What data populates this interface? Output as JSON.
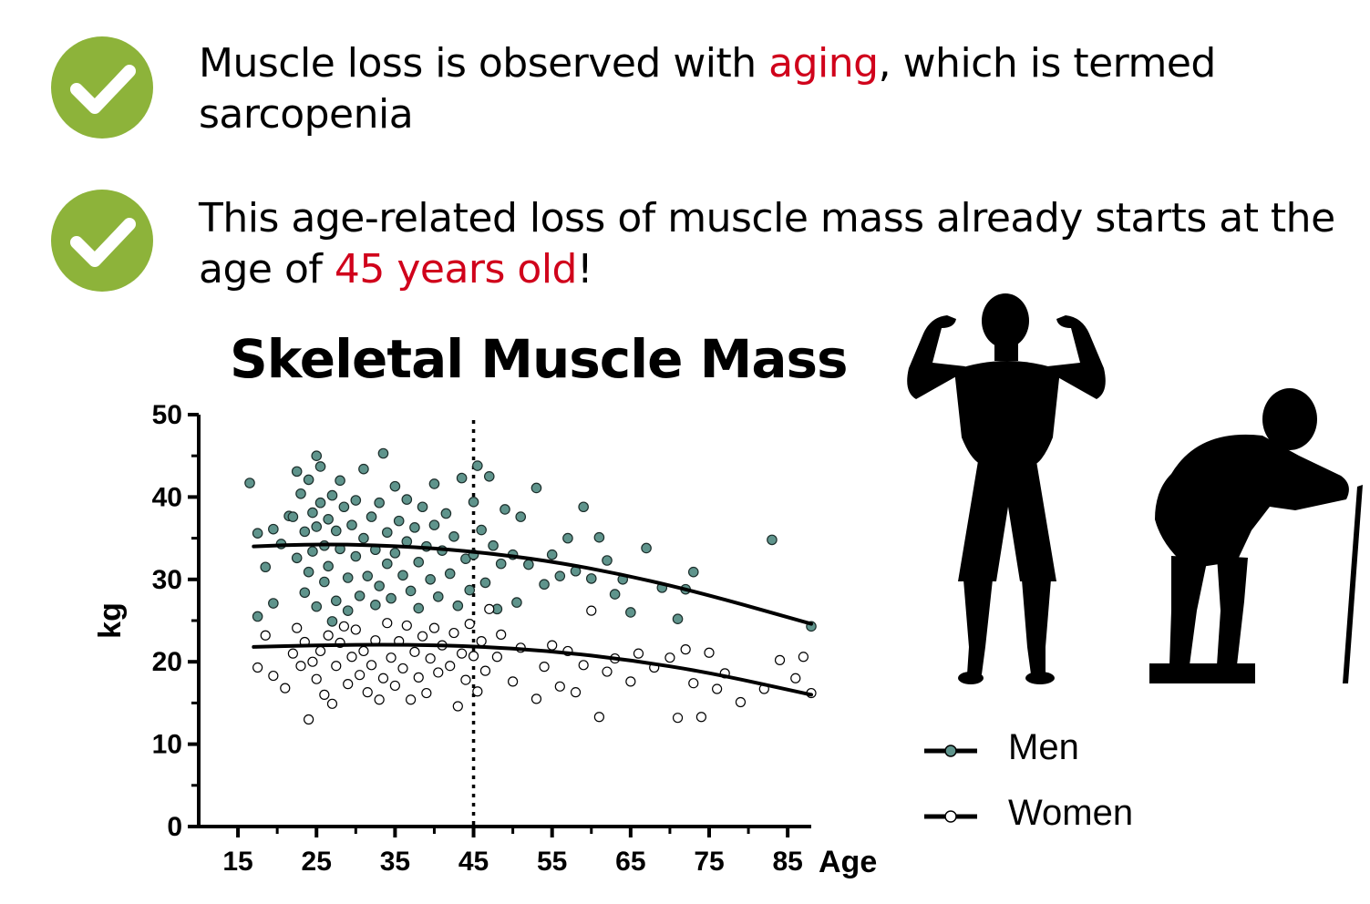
{
  "bullets": [
    {
      "icon": "check-circle-icon",
      "text_before": "Muscle loss is observed with ",
      "highlight": "aging",
      "text_after": ", which is termed sarcopenia"
    },
    {
      "icon": "check-circle-icon",
      "text_before": "This age-related loss of muscle mass already starts at the age of ",
      "highlight": "45 years old",
      "text_after": "!"
    }
  ],
  "colors": {
    "check_green": "#8db33a",
    "highlight_red": "#d0021b",
    "men_marker": "#5f948c",
    "women_marker": "#ffffff"
  },
  "chart_data": {
    "type": "scatter",
    "title": "Skeletal Muscle Mass",
    "xlabel": "Age",
    "ylabel": "kg",
    "xlim": [
      10,
      88
    ],
    "ylim": [
      0,
      50
    ],
    "xticks": [
      15,
      25,
      35,
      45,
      55,
      65,
      75,
      85
    ],
    "yticks": [
      0,
      10,
      20,
      30,
      40,
      50
    ],
    "vertical_reference_line": 45,
    "legend_position": "bottom-right",
    "series": [
      {
        "name": "Men",
        "marker": "filled",
        "trend": [
          [
            17,
            34.0
          ],
          [
            25,
            34.3
          ],
          [
            35,
            34.1
          ],
          [
            45,
            33.4
          ],
          [
            55,
            32.2
          ],
          [
            65,
            30.4
          ],
          [
            75,
            28.1
          ],
          [
            88,
            24.6
          ]
        ],
        "points": [
          [
            16.5,
            41.7
          ],
          [
            17.5,
            35.6
          ],
          [
            17.5,
            25.5
          ],
          [
            18.5,
            31.5
          ],
          [
            19.5,
            36.1
          ],
          [
            19.5,
            27.1
          ],
          [
            20.5,
            34.3
          ],
          [
            21.5,
            37.7
          ],
          [
            22.0,
            37.6
          ],
          [
            22.5,
            43.1
          ],
          [
            22.5,
            32.6
          ],
          [
            23.0,
            40.4
          ],
          [
            23.5,
            35.8
          ],
          [
            23.5,
            28.4
          ],
          [
            24.0,
            42.1
          ],
          [
            24.0,
            30.9
          ],
          [
            24.5,
            38.1
          ],
          [
            24.5,
            33.4
          ],
          [
            25.0,
            45.0
          ],
          [
            25.0,
            36.4
          ],
          [
            25.0,
            26.7
          ],
          [
            25.5,
            43.7
          ],
          [
            25.5,
            39.3
          ],
          [
            26.0,
            34.1
          ],
          [
            26.0,
            29.7
          ],
          [
            26.5,
            37.3
          ],
          [
            26.5,
            31.6
          ],
          [
            27.0,
            40.2
          ],
          [
            27.0,
            24.9
          ],
          [
            27.5,
            35.9
          ],
          [
            27.5,
            27.4
          ],
          [
            28.0,
            42.0
          ],
          [
            28.0,
            33.7
          ],
          [
            28.5,
            38.8
          ],
          [
            29.0,
            30.2
          ],
          [
            29.0,
            26.2
          ],
          [
            29.5,
            36.6
          ],
          [
            30.0,
            39.6
          ],
          [
            30.0,
            32.8
          ],
          [
            30.5,
            28.0
          ],
          [
            31.0,
            43.4
          ],
          [
            31.0,
            35.0
          ],
          [
            31.5,
            30.4
          ],
          [
            32.0,
            37.6
          ],
          [
            32.5,
            33.6
          ],
          [
            32.5,
            26.9
          ],
          [
            33.0,
            39.3
          ],
          [
            33.0,
            29.2
          ],
          [
            33.5,
            45.3
          ],
          [
            34.0,
            35.7
          ],
          [
            34.0,
            31.9
          ],
          [
            34.5,
            27.7
          ],
          [
            35.0,
            41.3
          ],
          [
            35.0,
            33.2
          ],
          [
            35.5,
            37.1
          ],
          [
            36.0,
            30.5
          ],
          [
            36.5,
            39.7
          ],
          [
            36.5,
            34.6
          ],
          [
            37.0,
            28.6
          ],
          [
            37.5,
            36.3
          ],
          [
            38.0,
            32.1
          ],
          [
            38.0,
            26.5
          ],
          [
            38.5,
            38.8
          ],
          [
            39.0,
            34.0
          ],
          [
            39.5,
            30.0
          ],
          [
            40.0,
            41.6
          ],
          [
            40.0,
            36.6
          ],
          [
            40.5,
            27.9
          ],
          [
            41.0,
            33.5
          ],
          [
            41.5,
            38.0
          ],
          [
            42.0,
            30.7
          ],
          [
            42.5,
            35.2
          ],
          [
            43.0,
            26.8
          ],
          [
            43.5,
            42.3
          ],
          [
            44.0,
            32.5
          ],
          [
            44.5,
            28.7
          ],
          [
            45.0,
            39.4
          ],
          [
            45.0,
            33.0
          ],
          [
            45.5,
            43.8
          ],
          [
            46.0,
            36.0
          ],
          [
            46.5,
            29.6
          ],
          [
            47.0,
            42.5
          ],
          [
            47.5,
            34.1
          ],
          [
            48.0,
            26.4
          ],
          [
            48.5,
            31.9
          ],
          [
            49.0,
            38.5
          ],
          [
            50.0,
            33.0
          ],
          [
            50.5,
            27.2
          ],
          [
            51.0,
            37.6
          ],
          [
            52.0,
            31.8
          ],
          [
            53.0,
            41.1
          ],
          [
            54.0,
            29.4
          ],
          [
            55.0,
            33.0
          ],
          [
            56.0,
            30.4
          ],
          [
            57.0,
            35.0
          ],
          [
            58.0,
            31.0
          ],
          [
            59.0,
            38.8
          ],
          [
            60.0,
            30.1
          ],
          [
            61.0,
            35.1
          ],
          [
            62.0,
            32.3
          ],
          [
            63.0,
            28.2
          ],
          [
            64.0,
            30.0
          ],
          [
            65.0,
            26.0
          ],
          [
            67.0,
            33.8
          ],
          [
            69.0,
            29.0
          ],
          [
            71.0,
            25.2
          ],
          [
            72.0,
            28.8
          ],
          [
            73.0,
            30.9
          ],
          [
            83.0,
            34.8
          ],
          [
            88.0,
            24.3
          ]
        ]
      },
      {
        "name": "Women",
        "marker": "open",
        "trend": [
          [
            17,
            21.8
          ],
          [
            25,
            22.0
          ],
          [
            35,
            22.1
          ],
          [
            45,
            21.9
          ],
          [
            55,
            21.3
          ],
          [
            65,
            20.2
          ],
          [
            75,
            18.7
          ],
          [
            88,
            16.0
          ]
        ],
        "points": [
          [
            17.5,
            19.3
          ],
          [
            18.5,
            23.2
          ],
          [
            19.5,
            18.3
          ],
          [
            21.0,
            16.8
          ],
          [
            22.0,
            21.0
          ],
          [
            22.5,
            24.1
          ],
          [
            23.0,
            19.5
          ],
          [
            23.5,
            22.4
          ],
          [
            24.0,
            13.0
          ],
          [
            24.5,
            20.0
          ],
          [
            25.0,
            17.9
          ],
          [
            25.5,
            21.3
          ],
          [
            26.0,
            16.0
          ],
          [
            26.5,
            23.2
          ],
          [
            27.0,
            14.9
          ],
          [
            27.5,
            19.5
          ],
          [
            28.0,
            22.3
          ],
          [
            28.5,
            24.3
          ],
          [
            29.0,
            17.3
          ],
          [
            29.5,
            20.6
          ],
          [
            30.0,
            23.9
          ],
          [
            30.5,
            18.4
          ],
          [
            31.0,
            21.3
          ],
          [
            31.5,
            16.3
          ],
          [
            32.0,
            19.6
          ],
          [
            32.5,
            22.6
          ],
          [
            33.0,
            15.4
          ],
          [
            33.5,
            18.0
          ],
          [
            34.0,
            24.7
          ],
          [
            34.5,
            20.5
          ],
          [
            35.0,
            17.1
          ],
          [
            35.5,
            22.5
          ],
          [
            36.0,
            19.2
          ],
          [
            36.5,
            24.4
          ],
          [
            37.0,
            15.4
          ],
          [
            37.5,
            21.2
          ],
          [
            38.0,
            18.1
          ],
          [
            38.5,
            23.1
          ],
          [
            39.0,
            16.2
          ],
          [
            39.5,
            20.4
          ],
          [
            40.0,
            24.1
          ],
          [
            40.5,
            18.7
          ],
          [
            41.0,
            22.0
          ],
          [
            42.0,
            19.5
          ],
          [
            42.5,
            23.5
          ],
          [
            43.0,
            14.6
          ],
          [
            43.5,
            21.0
          ],
          [
            44.0,
            17.8
          ],
          [
            44.5,
            24.6
          ],
          [
            45.0,
            20.7
          ],
          [
            45.5,
            16.4
          ],
          [
            46.0,
            22.5
          ],
          [
            46.5,
            18.9
          ],
          [
            47.0,
            26.4
          ],
          [
            48.0,
            20.6
          ],
          [
            48.5,
            23.3
          ],
          [
            50.0,
            17.6
          ],
          [
            51.0,
            21.7
          ],
          [
            53.0,
            15.5
          ],
          [
            54.0,
            19.4
          ],
          [
            55.0,
            22.0
          ],
          [
            56.0,
            17.0
          ],
          [
            57.0,
            21.3
          ],
          [
            58.0,
            16.3
          ],
          [
            59.0,
            19.6
          ],
          [
            60.0,
            26.2
          ],
          [
            61.0,
            13.3
          ],
          [
            62.0,
            18.8
          ],
          [
            63.0,
            20.4
          ],
          [
            65.0,
            17.6
          ],
          [
            66.0,
            21.0
          ],
          [
            68.0,
            19.3
          ],
          [
            70.0,
            20.5
          ],
          [
            71.0,
            13.2
          ],
          [
            72.0,
            21.5
          ],
          [
            73.0,
            17.4
          ],
          [
            74.0,
            13.3
          ],
          [
            75.0,
            21.1
          ],
          [
            76.0,
            16.7
          ],
          [
            77.0,
            18.6
          ],
          [
            79.0,
            15.1
          ],
          [
            82.0,
            16.7
          ],
          [
            84.0,
            20.2
          ],
          [
            86.0,
            18.0
          ],
          [
            87.0,
            20.6
          ],
          [
            88.0,
            16.2
          ]
        ]
      }
    ]
  }
}
